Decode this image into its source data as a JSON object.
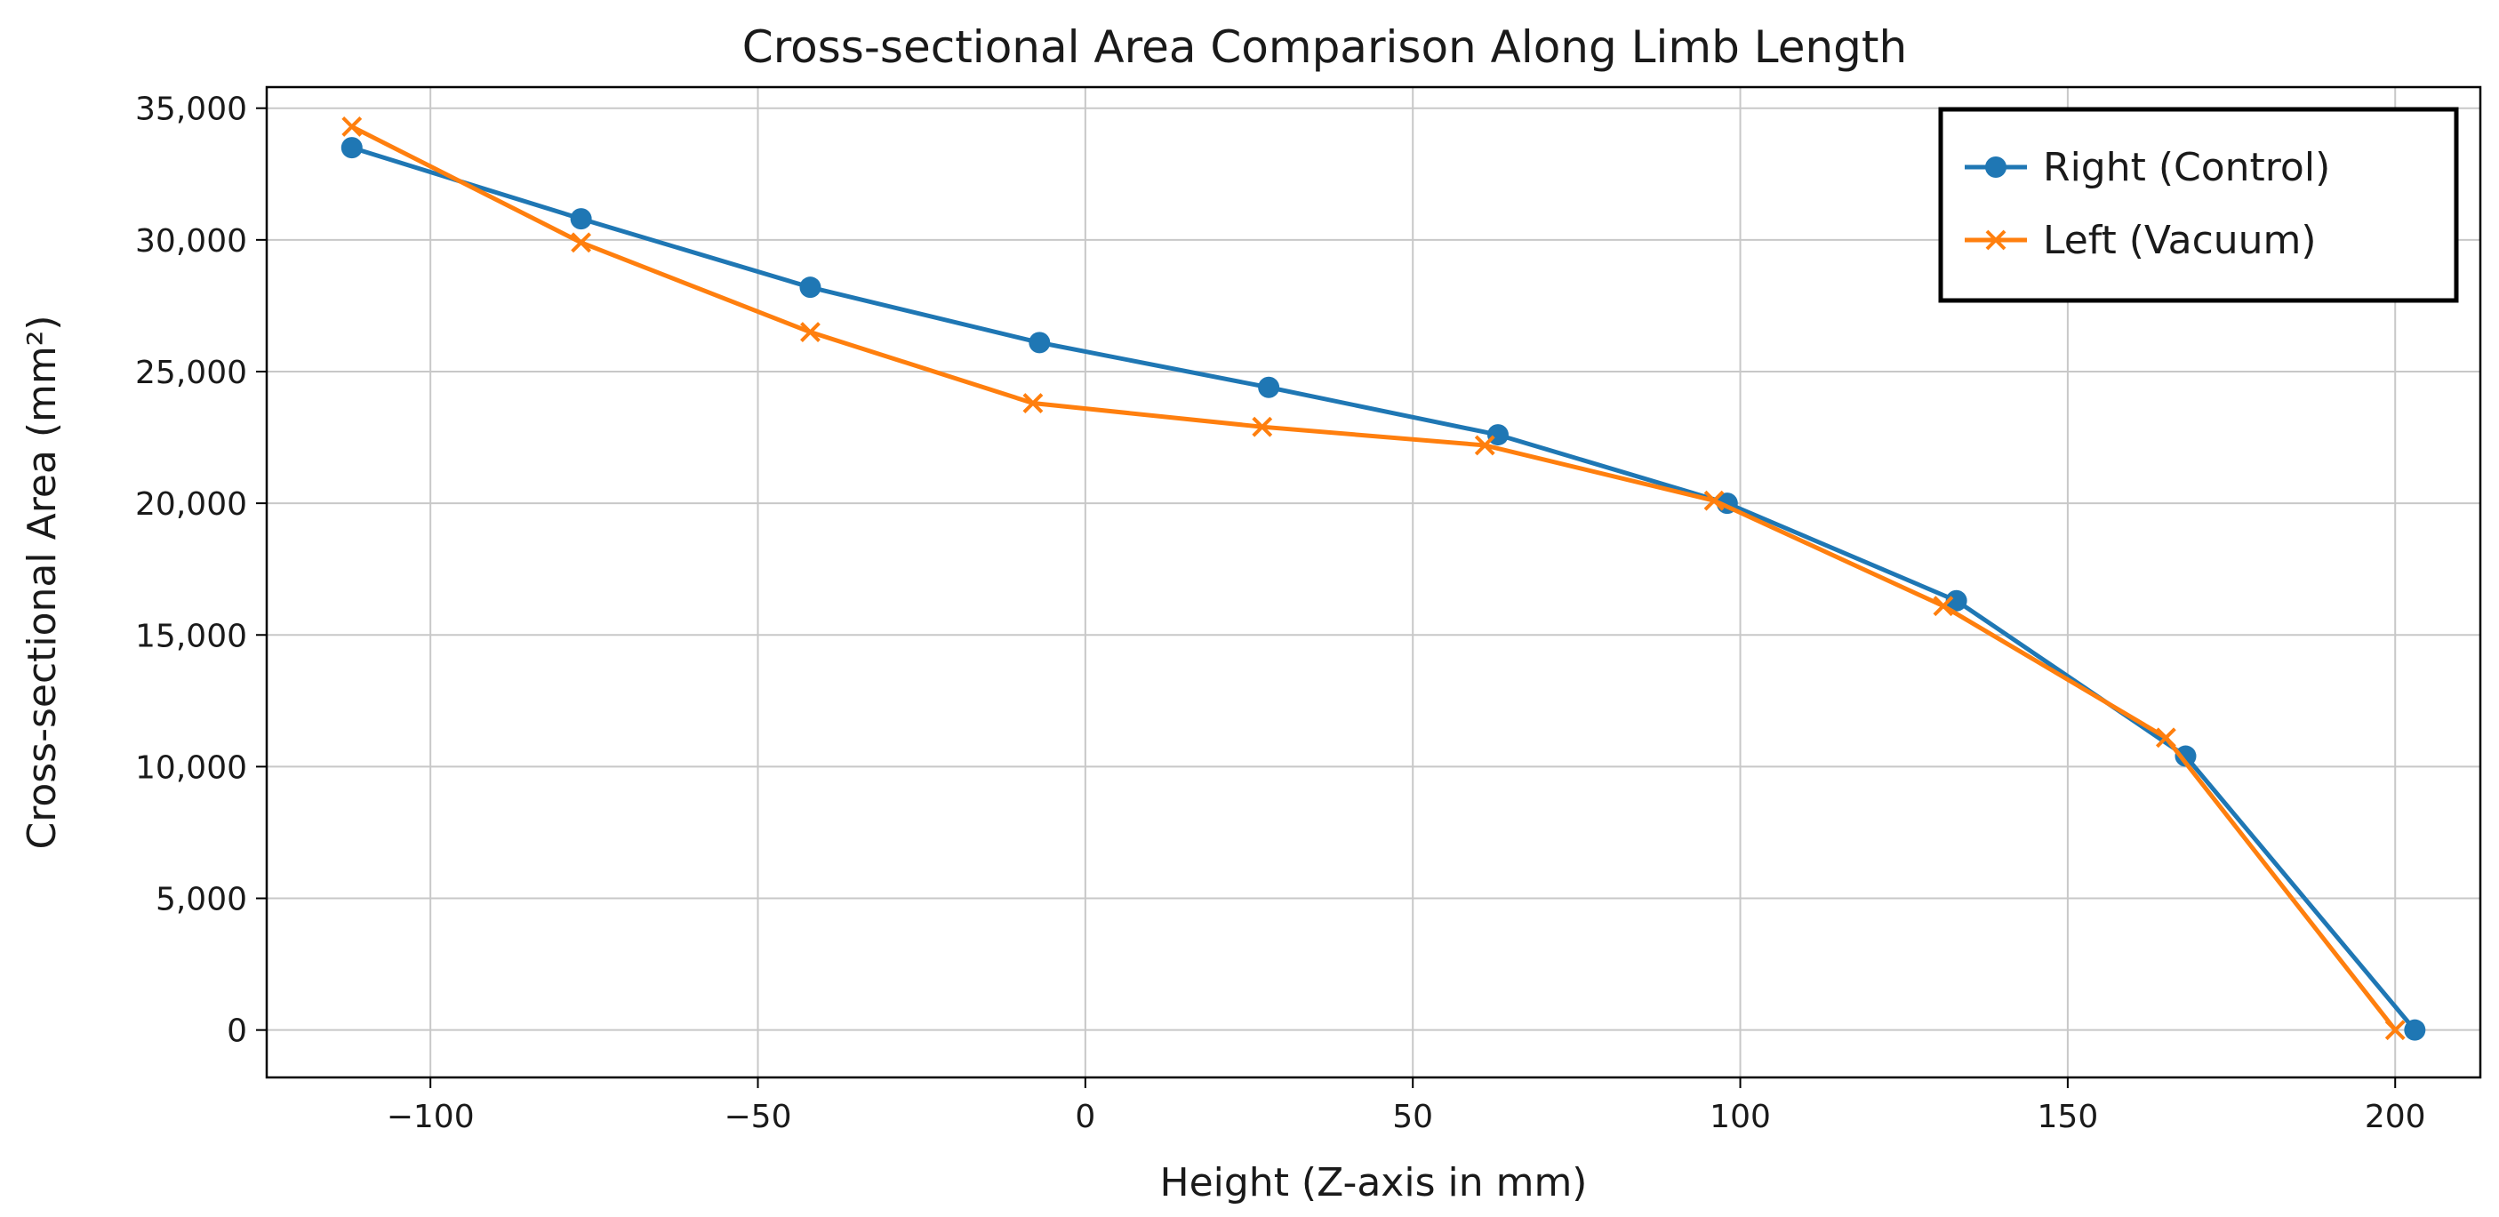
{
  "chart_data": {
    "type": "line",
    "title": "Cross-sectional Area Comparison Along Limb Length",
    "xlabel": "Height (Z-axis in mm)",
    "ylabel": "Cross-sectional Area (mm²)",
    "xlim": [
      -125,
      213
    ],
    "ylim": [
      -1800,
      35800
    ],
    "grid": true,
    "legend_position": "top-right",
    "x_ticks": [
      -100,
      -50,
      0,
      50,
      100,
      150,
      200
    ],
    "x_tick_labels": [
      "−100",
      "−50",
      "0",
      "50",
      "100",
      "150",
      "200"
    ],
    "y_ticks": [
      0,
      5000,
      10000,
      15000,
      20000,
      25000,
      30000,
      35000
    ],
    "y_tick_labels": [
      "0",
      "5,000",
      "10,000",
      "15,000",
      "20,000",
      "25,000",
      "30,000",
      "35,000"
    ],
    "series": [
      {
        "name": "Right (Control)",
        "color": "#1f77b4",
        "marker": "circle",
        "x": [
          -112,
          -77,
          -42,
          -7,
          28,
          63,
          98,
          133,
          168,
          203
        ],
        "y": [
          33500,
          30800,
          28200,
          26100,
          24400,
          22600,
          20000,
          16300,
          10400,
          0
        ]
      },
      {
        "name": "Left (Vacuum)",
        "color": "#ff7f0e",
        "marker": "x",
        "x": [
          -112,
          -77,
          -42,
          -8,
          27,
          61,
          96,
          131,
          165,
          200
        ],
        "y": [
          34300,
          29900,
          26500,
          23800,
          22900,
          22200,
          20100,
          16100,
          11100,
          0
        ]
      }
    ]
  }
}
